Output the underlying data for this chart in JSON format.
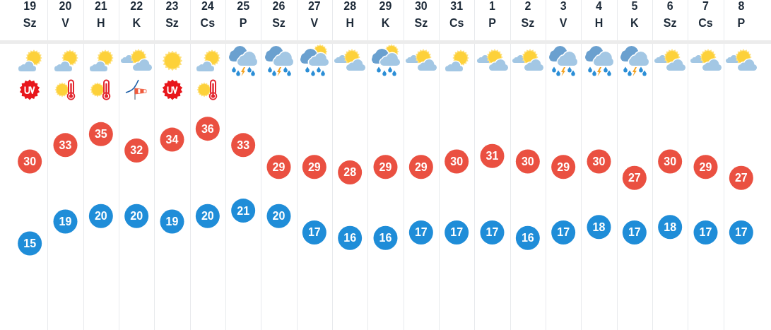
{
  "chart_data": {
    "type": "scatter",
    "categories": [
      "19\nSz",
      "20\nV",
      "21\nH",
      "22\nK",
      "23\nSz",
      "24\nCs",
      "25\nP",
      "26\nSz",
      "27\nV",
      "28\nH",
      "29\nK",
      "30\nSz",
      "31\nCs",
      "1\nP",
      "2\nSz",
      "3\nV",
      "4\nH",
      "5\nK",
      "6\nSz",
      "7\nCs",
      "8\nP"
    ],
    "series": [
      {
        "color": "#ea5041",
        "values": [
          30,
          33,
          35,
          32,
          34,
          36,
          33,
          29,
          29,
          28,
          29,
          29,
          30,
          31,
          30,
          29,
          30,
          27,
          30,
          29,
          27
        ]
      },
      {
        "color": "#1f8dd8",
        "values": [
          15,
          19,
          20,
          20,
          19,
          20,
          21,
          20,
          17,
          16,
          16,
          17,
          17,
          17,
          16,
          17,
          18,
          17,
          18,
          17,
          17
        ]
      }
    ],
    "tick_labels": "x",
    "grid": "x",
    "marker": "circle",
    "data_labels": true
  }
}
